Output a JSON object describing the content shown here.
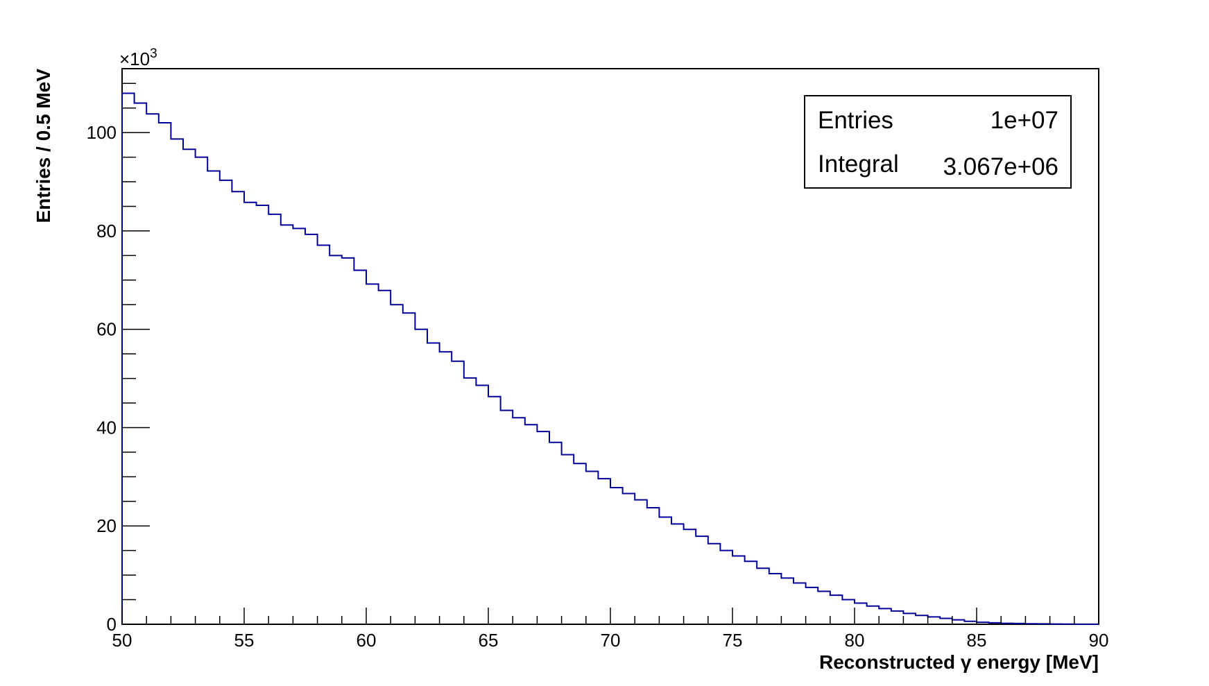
{
  "chart_data": {
    "type": "histogram",
    "xlabel": "Reconstructed γ energy [MeV]",
    "ylabel": "Entries / 0.5 MeV",
    "y_multiplier_label": "×10",
    "y_multiplier_exp": "3",
    "xlim": [
      50,
      90
    ],
    "ylim": [
      0,
      113
    ],
    "x_ticks": [
      "50",
      "55",
      "60",
      "65",
      "70",
      "75",
      "80",
      "85",
      "90"
    ],
    "y_ticks": [
      "0",
      "20",
      "40",
      "60",
      "80",
      "100"
    ],
    "bin_width": 0.5,
    "bin_start": 50,
    "bin_values_thousands": [
      108.0,
      106.0,
      103.8,
      102.0,
      98.7,
      96.6,
      95.0,
      92.2,
      90.3,
      88.0,
      85.8,
      85.2,
      83.4,
      81.2,
      80.5,
      79.3,
      77.1,
      75.0,
      74.5,
      72.0,
      69.2,
      67.9,
      65.0,
      63.3,
      60.0,
      57.2,
      55.4,
      53.5,
      50.1,
      48.6,
      46.3,
      43.5,
      42.0,
      40.6,
      39.2,
      37.0,
      34.5,
      32.7,
      31.1,
      29.6,
      27.8,
      26.6,
      25.3,
      23.7,
      21.8,
      20.4,
      19.3,
      17.9,
      16.4,
      15.0,
      13.9,
      12.8,
      11.4,
      10.3,
      9.4,
      8.4,
      7.5,
      6.7,
      5.9,
      5.0,
      4.3,
      3.7,
      3.2,
      2.7,
      2.2,
      1.8,
      1.5,
      1.2,
      0.9,
      0.6,
      0.4,
      0.3,
      0.2,
      0.15,
      0.1,
      0.08,
      0.05,
      0.03,
      0.02,
      0.01
    ],
    "line_color": "#000099",
    "grid": false,
    "legend_position": "top-right"
  },
  "stats": {
    "entries_label": "Entries",
    "entries_value": "1e+07",
    "integral_label": "Integral",
    "integral_value": "3.067e+06"
  }
}
